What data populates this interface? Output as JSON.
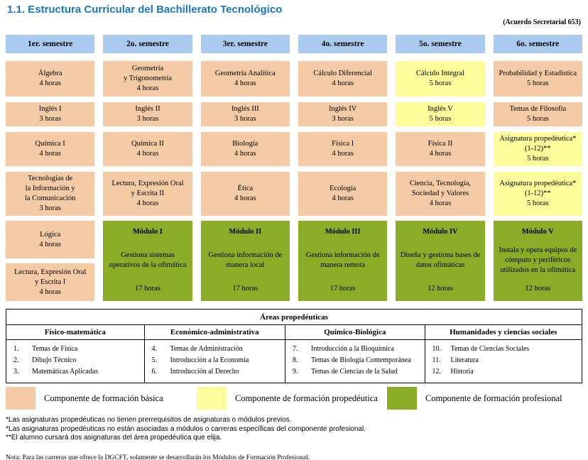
{
  "doc": {
    "title": "1.1. Estructura Curricular del Bachillerato Tecnológico",
    "acuerdo": "(Acuerdo Secretarial 653)"
  },
  "colors": {
    "basica": "#F4CBA4",
    "propedeutica": "#FDFD9C",
    "profesional": "#8BAC27",
    "semestre_header": "#AACBF0",
    "title_text": "#1B76C6"
  },
  "curriculum": {
    "headers": [
      "1er. semestre",
      "2o. semestre",
      "3er. semestre",
      "4o. semestre",
      "5o. semestre",
      "6o. semestre"
    ],
    "rows": [
      {
        "cells": [
          {
            "title": "Álgebra",
            "hours": "4 horas",
            "component": "basica"
          },
          {
            "title": "Geometría\ny Trigonometría",
            "hours": "4 horas",
            "component": "basica"
          },
          {
            "title": "Geometría Analítica",
            "hours": "4 horas",
            "component": "basica"
          },
          {
            "title": "Cálculo Diferencial",
            "hours": "4 horas",
            "component": "basica"
          },
          {
            "title": "Cálculo Integral",
            "hours": "5 horas",
            "component": "propedeutica"
          },
          {
            "title": "Probabilidad y Estadística",
            "hours": "5 horas",
            "component": "basica"
          }
        ]
      },
      {
        "cells": [
          {
            "title": "Inglés I",
            "hours": "3 horas",
            "component": "basica"
          },
          {
            "title": "Inglés II",
            "hours": "3 horas",
            "component": "basica"
          },
          {
            "title": "Inglés III",
            "hours": "3 horas",
            "component": "basica"
          },
          {
            "title": "Inglés IV",
            "hours": "3 horas",
            "component": "basica"
          },
          {
            "title": "Inglés V",
            "hours": "5 horas",
            "component": "propedeutica"
          },
          {
            "title": "Temas de Filosofía",
            "hours": "5 horas",
            "component": "basica"
          }
        ]
      },
      {
        "cells": [
          {
            "title": "Química I",
            "hours": "4 horas",
            "component": "basica"
          },
          {
            "title": "Química II",
            "hours": "4 horas",
            "component": "basica"
          },
          {
            "title": "Biología",
            "hours": "4 horas",
            "component": "basica"
          },
          {
            "title": "Física I",
            "hours": "4 horas",
            "component": "basica"
          },
          {
            "title": "Física II",
            "hours": "4 horas",
            "component": "basica"
          },
          {
            "title": "Asignatura propedéutica*\n(1-12)**",
            "hours": "5 horas",
            "component": "propedeutica"
          }
        ]
      },
      {
        "cells": [
          {
            "title": "Tecnologías de\nla Información y\nla Comunicación",
            "hours": "3 horas",
            "component": "basica"
          },
          {
            "title": "Lectura, Expresión Oral\ny Escrita II",
            "hours": "4 horas",
            "component": "basica"
          },
          {
            "title": "Ética",
            "hours": "4 horas",
            "component": "basica"
          },
          {
            "title": "Ecología",
            "hours": "4 horas",
            "component": "basica"
          },
          {
            "title": "Ciencia, Tecnología,\nSociedad y Valores",
            "hours": "4 horas",
            "component": "basica"
          },
          {
            "title": "Asignatura propedéutica*\n(1-12)**",
            "hours": "5 horas",
            "component": "propedeutica"
          }
        ]
      }
    ],
    "final_row": {
      "stacked": [
        {
          "title": "Lógica",
          "hours": "4 horas",
          "component": "basica"
        },
        {
          "title": "Lectura, Expresión Oral\ny Escrita I",
          "hours": "4 horas",
          "component": "basica"
        }
      ],
      "modules": [
        {
          "name": "Módulo I",
          "description": "Gestiona sistemas\noperativos de la ofimática",
          "hours": "17 horas",
          "component": "profesional"
        },
        {
          "name": "Módulo II",
          "description": "Gestiona información de\nmanera local",
          "hours": "17 horas",
          "component": "profesional"
        },
        {
          "name": "Módulo III",
          "description": "Gestiona información de\nmanera remota",
          "hours": "17 horas",
          "component": "profesional"
        },
        {
          "name": "Módulo IV",
          "description": "Diseña y gestiona bases de\ndatos ofimáticas",
          "hours": "12 horas",
          "component": "profesional"
        },
        {
          "name": "Módulo V",
          "description": "Instala y opera equipos de\ncómputo y periféricos\nutilizados en la ofimática",
          "hours": "12 horas",
          "component": "profesional"
        }
      ]
    }
  },
  "areas": {
    "title": "Áreas propedéuticas",
    "columns": [
      {
        "header": "Físico-matemática",
        "items": [
          {
            "num": "1.",
            "text": "Temas de Física"
          },
          {
            "num": "2.",
            "text": "Dibujo Técnico"
          },
          {
            "num": "3.",
            "text": "Matemáticas Aplicadas"
          }
        ]
      },
      {
        "header": "Económico-administrativa",
        "items": [
          {
            "num": "4.",
            "text": "Temas de Administración"
          },
          {
            "num": "5.",
            "text": "Introducción a la Economía"
          },
          {
            "num": "6.",
            "text": "Introducción al Derecho"
          }
        ]
      },
      {
        "header": "Químico-Biológica",
        "items": [
          {
            "num": "7.",
            "text": "Introducción a la Bioquímica"
          },
          {
            "num": "8.",
            "text": "Temas de Biología Contemporánea"
          },
          {
            "num": "9.",
            "text": "Temas de Ciencias de la Salud"
          }
        ]
      },
      {
        "header": "Humanidades y ciencias sociales",
        "items": [
          {
            "num": "10.",
            "text": "Temas de Ciencias Sociales"
          },
          {
            "num": "11.",
            "text": "Literatura"
          },
          {
            "num": "12.",
            "text": "Historia"
          }
        ]
      }
    ]
  },
  "legend": {
    "items": [
      {
        "label": "Componente de formación básica",
        "component": "basica"
      },
      {
        "label": "Componente de formación propedéutica",
        "component": "propedeutica"
      },
      {
        "label": "Componente de formación profesional",
        "component": "profesional"
      }
    ]
  },
  "footnotes": {
    "lines": [
      "*Las asignaturas propedéuticas no tienen prerrequisitos de asignaturas o módulos previos.",
      "*Las asignaturas propedéuticas no están asociadas a módulos o carreras específicas del componente profesional.",
      "**El alumno cursará dos asignaturas del área propedéutica que elija."
    ],
    "nota": "Nota: Para las carreras que ofrece la DGCFT, solamente se desarrollarán los Módulos de Formación Profesional."
  }
}
